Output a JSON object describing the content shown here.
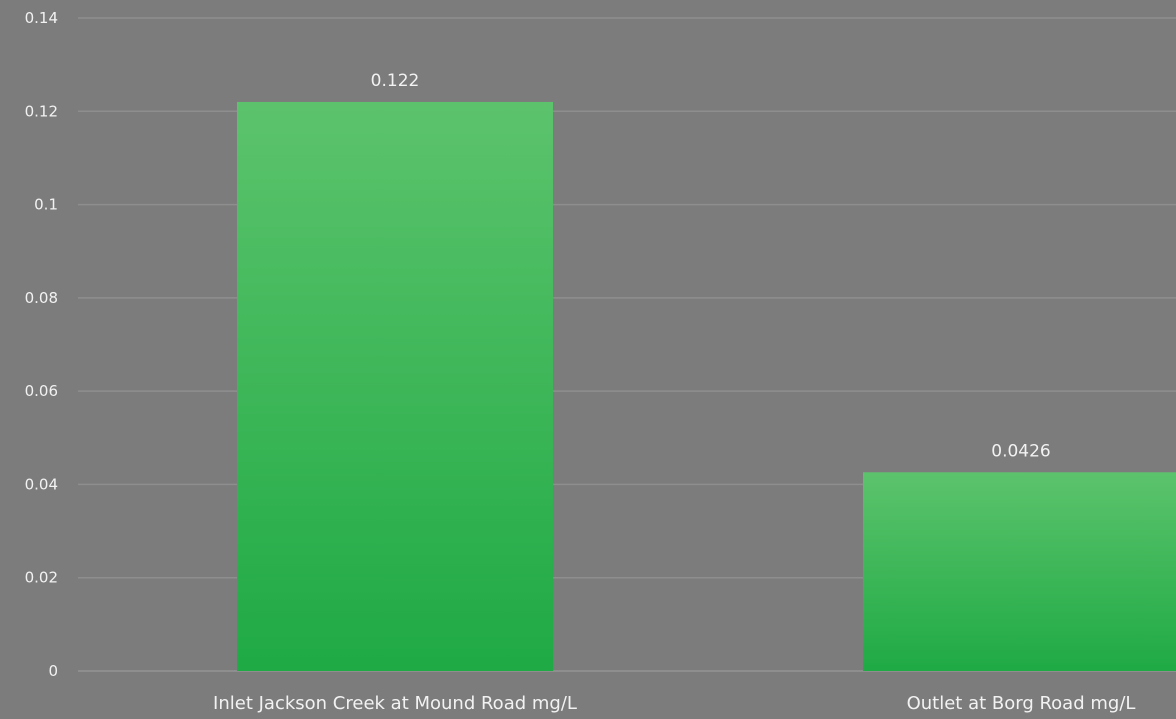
{
  "chart_data": {
    "type": "bar",
    "categories": [
      "Inlet Jackson Creek at Mound Road mg/L",
      "Outlet at Borg Road mg/L"
    ],
    "values": [
      0.122,
      0.0426
    ],
    "data_labels": [
      "0.122",
      "0.0426"
    ],
    "y_ticks": [
      "0",
      "0.02",
      "0.04",
      "0.06",
      "0.08",
      "0.1",
      "0.12",
      "0.14"
    ],
    "ylim": [
      0,
      0.14
    ],
    "grid": true,
    "legend": "none",
    "title": "",
    "xlabel": "",
    "ylabel": "",
    "colors": {
      "background": "#7c7c7c",
      "bar_top": "#5cc36c",
      "bar_bottom": "#1faa45",
      "gridline": "#8e8e8e",
      "text": "#f2f2f2"
    }
  }
}
